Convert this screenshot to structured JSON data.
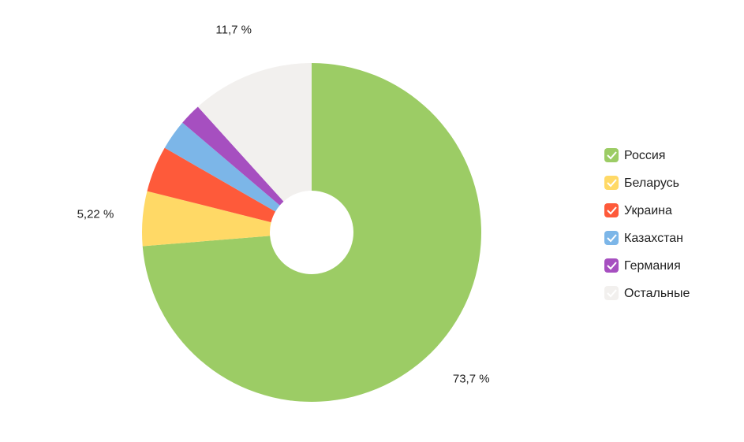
{
  "chart_data": {
    "type": "pie",
    "categories": [
      "Россия",
      "Беларусь",
      "Украина",
      "Казахстан",
      "Германия",
      "Остальные"
    ],
    "values": [
      73.7,
      5.22,
      4.4,
      2.9,
      2.08,
      11.7
    ],
    "value_labels": [
      "73,7 %",
      "5,22 %",
      null,
      null,
      null,
      "11,7 %"
    ],
    "colors": [
      "#9ccc65",
      "#ffd966",
      "#fe5a3a",
      "#7cb6e8",
      "#a64fc0",
      "#f2f0ee"
    ],
    "legend": "right"
  }
}
